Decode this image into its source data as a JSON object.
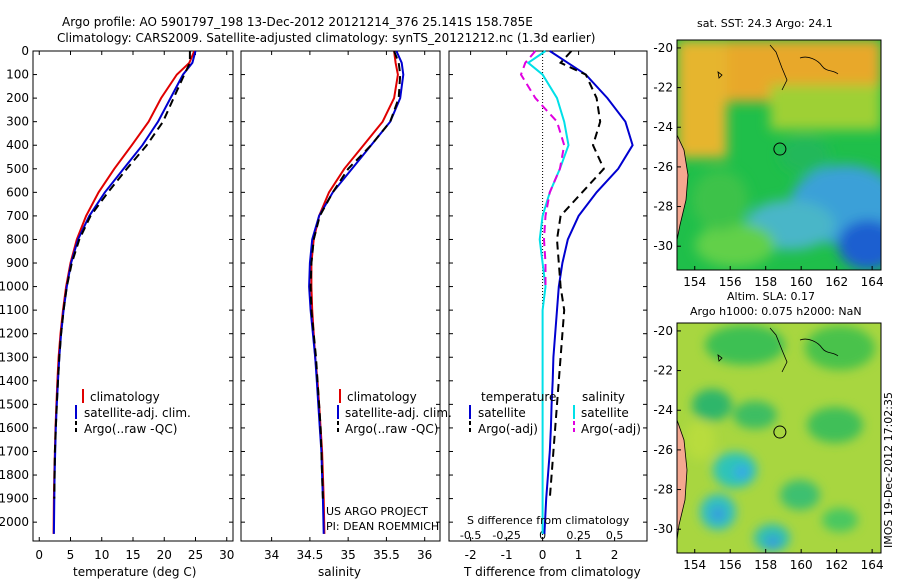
{
  "header": {
    "line1": "Argo profile: AO 5901797_198 13-Dec-2012 20121214_376 25.141S 158.785E",
    "line2": "Climatology: CARS2009. Satellite-adjusted climatology: synTS_20121212.nc (1.3d earlier)"
  },
  "colors": {
    "climatology": "#e00000",
    "satellite": "#0000d0",
    "argo": "#000000",
    "salinity_satellite": "#00e0e8",
    "salinity_argo": "#e000e0"
  },
  "map_top": {
    "title": "sat. SST: 24.3  Argo: 24.1",
    "xticks": [
      "154",
      "156",
      "158",
      "160",
      "162",
      "164"
    ],
    "yticks": [
      "-20",
      "-22",
      "-24",
      "-26",
      "-28",
      "-30"
    ],
    "xlim": [
      153,
      164.5
    ],
    "ylim": [
      -31.2,
      -19.6
    ],
    "marker": [
      158.8,
      -25.1
    ],
    "field": "sea-surface-temperature"
  },
  "map_bottom": {
    "title1": "Altim. SLA: 0.17",
    "title2": "Argo h1000: 0.075 h2000: NaN",
    "xticks": [
      "154",
      "156",
      "158",
      "160",
      "162",
      "164"
    ],
    "yticks": [
      "-20",
      "-22",
      "-24",
      "-26",
      "-28",
      "-30"
    ],
    "xlim": [
      153,
      164.5
    ],
    "ylim": [
      -31.2,
      -19.6
    ],
    "marker": [
      158.8,
      -25.1
    ],
    "field": "sea-level-anomaly"
  },
  "credit": "IMOS 19-Dec-2012 17:02:35",
  "chart_data": [
    {
      "type": "line",
      "xlabel": "temperature (deg C)",
      "xlim": [
        -1,
        31
      ],
      "ylim": [
        2080,
        0
      ],
      "xticks": [
        "0",
        "5",
        "10",
        "15",
        "20",
        "25",
        "30"
      ],
      "yticks": [
        "0",
        "100",
        "200",
        "300",
        "400",
        "500",
        "600",
        "700",
        "800",
        "900",
        "1000",
        "1100",
        "1200",
        "1300",
        "1400",
        "1500",
        "1600",
        "1700",
        "1800",
        "1900",
        "2000"
      ],
      "legend": [
        "climatology",
        "satellite-adj. clim.",
        "Argo(..raw -QC)"
      ],
      "series": [
        {
          "name": "climatology",
          "style": "solid",
          "color": "#e00000",
          "x": [
            24.8,
            24.0,
            22.0,
            19.5,
            17.5,
            14.8,
            12.0,
            9.5,
            7.5,
            6.0,
            5.0,
            4.3,
            3.8,
            3.4,
            3.1,
            2.9,
            2.75,
            2.6,
            2.5,
            2.4,
            2.35,
            2.3
          ],
          "y": [
            0,
            50,
            100,
            200,
            300,
            400,
            500,
            600,
            700,
            800,
            900,
            1000,
            1100,
            1200,
            1300,
            1400,
            1500,
            1600,
            1700,
            1800,
            1900,
            2050
          ]
        },
        {
          "name": "satellite-adj. clim.",
          "style": "solid",
          "color": "#0000d0",
          "x": [
            25.0,
            24.5,
            23.0,
            21.0,
            19.0,
            16.5,
            13.5,
            10.5,
            8.0,
            6.2,
            5.1,
            4.4,
            3.9,
            3.5,
            3.2,
            3.0,
            2.8,
            2.65,
            2.55,
            2.45,
            2.4,
            2.35
          ],
          "y": [
            0,
            50,
            100,
            200,
            300,
            400,
            500,
            600,
            700,
            800,
            900,
            1000,
            1100,
            1200,
            1300,
            1400,
            1500,
            1600,
            1700,
            1800,
            1900,
            2050
          ]
        },
        {
          "name": "Argo(..raw -QC)",
          "style": "dashed",
          "color": "#000000",
          "x": [
            24.1,
            24.1,
            23.2,
            21.5,
            19.8,
            17.2,
            14.0,
            11.0,
            8.2,
            6.4,
            5.2,
            4.4,
            3.9,
            3.5,
            3.2,
            3.0,
            2.8,
            2.65,
            2.5,
            2.45,
            2.4
          ],
          "y": [
            0,
            50,
            100,
            200,
            300,
            400,
            500,
            600,
            700,
            800,
            900,
            1000,
            1100,
            1200,
            1300,
            1400,
            1500,
            1600,
            1700,
            1800,
            1900
          ]
        }
      ]
    },
    {
      "type": "line",
      "xlabel": "salinity",
      "xlim": [
        33.6,
        36.2
      ],
      "ylim": [
        2080,
        0
      ],
      "xticks": [
        "34",
        "34.5",
        "35",
        "35.5",
        "36"
      ],
      "legend": [
        "climatology",
        "satellite-adj. clim.",
        "Argo(..raw -QC)"
      ],
      "annotation": [
        "US ARGO PROJECT",
        "PI: DEAN ROEMMICH"
      ],
      "series": [
        {
          "name": "climatology",
          "style": "solid",
          "color": "#e00000",
          "x": [
            35.6,
            35.62,
            35.65,
            35.6,
            35.45,
            35.2,
            34.95,
            34.75,
            34.62,
            34.55,
            34.52,
            34.52,
            34.53,
            34.55,
            34.57,
            34.6,
            34.62,
            34.64,
            34.66,
            34.67,
            34.68,
            34.69
          ],
          "y": [
            0,
            50,
            100,
            200,
            300,
            400,
            500,
            600,
            700,
            800,
            900,
            1000,
            1100,
            1200,
            1300,
            1400,
            1500,
            1600,
            1700,
            1800,
            1900,
            2050
          ]
        },
        {
          "name": "satellite-adj. clim.",
          "style": "solid",
          "color": "#0000d0",
          "x": [
            35.63,
            35.7,
            35.72,
            35.68,
            35.55,
            35.3,
            35.05,
            34.8,
            34.62,
            34.53,
            34.5,
            34.49,
            34.51,
            34.54,
            34.57,
            34.59,
            34.61,
            34.63,
            34.65,
            34.66,
            34.67,
            34.68
          ],
          "y": [
            0,
            50,
            100,
            200,
            300,
            400,
            500,
            600,
            700,
            800,
            900,
            1000,
            1100,
            1200,
            1300,
            1400,
            1500,
            1600,
            1700,
            1800,
            1900,
            2050
          ]
        },
        {
          "name": "Argo(..raw -QC)",
          "style": "dashed",
          "color": "#000000",
          "x": [
            35.6,
            35.66,
            35.68,
            35.66,
            35.55,
            35.3,
            35.0,
            34.8,
            34.63,
            34.55,
            34.52,
            34.51,
            34.52,
            34.55,
            34.58,
            34.6,
            34.62,
            34.64,
            34.65,
            34.66,
            34.67
          ],
          "y": [
            0,
            50,
            100,
            200,
            300,
            400,
            500,
            600,
            700,
            800,
            900,
            1000,
            1100,
            1200,
            1300,
            1400,
            1500,
            1600,
            1700,
            1800,
            1900
          ]
        }
      ]
    },
    {
      "type": "line",
      "xlabel": "T difference from climatology",
      "xlabel_top": "S difference from climatology",
      "xlim": [
        -2.6,
        2.9
      ],
      "ylim": [
        2080,
        0
      ],
      "xticks": [
        "-2",
        "-1",
        "0",
        "1",
        "2"
      ],
      "xticks_salinity": [
        "-0.5",
        "-0.25",
        "0",
        "0.25",
        "0.5"
      ],
      "legend": {
        "temperature": {
          "heading": "temperature",
          "items": [
            "satellite",
            "Argo(-adj)"
          ]
        },
        "salinity": {
          "heading": "salinity",
          "items": [
            "satellite",
            "Argo(-adj)"
          ]
        }
      },
      "series": [
        {
          "name": "satellite",
          "variable": "temperature",
          "style": "solid",
          "color": "#0000d0",
          "x": [
            0.2,
            0.7,
            1.2,
            1.8,
            2.3,
            2.5,
            2.1,
            1.5,
            1.0,
            0.7,
            0.55,
            0.45,
            0.4,
            0.35,
            0.3,
            0.28,
            0.25,
            0.23,
            0.2,
            0.15,
            0.1,
            0.05
          ],
          "y": [
            0,
            50,
            100,
            200,
            300,
            400,
            500,
            600,
            700,
            800,
            900,
            1000,
            1100,
            1200,
            1300,
            1400,
            1500,
            1600,
            1700,
            1800,
            1900,
            2050
          ]
        },
        {
          "name": "Argo(-adj)",
          "variable": "temperature",
          "style": "dashed",
          "color": "#000000",
          "x": [
            0.8,
            0.5,
            1.2,
            1.5,
            1.6,
            1.4,
            1.7,
            1.1,
            0.5,
            0.4,
            0.45,
            0.5,
            0.6,
            0.55,
            0.5,
            0.45,
            0.4,
            0.35,
            0.3,
            0.25,
            0.2
          ],
          "y": [
            0,
            50,
            100,
            200,
            300,
            400,
            500,
            600,
            700,
            800,
            900,
            1000,
            1100,
            1200,
            1300,
            1400,
            1500,
            1600,
            1700,
            1800,
            1900
          ]
        },
        {
          "name": "satellite",
          "variable": "salinity",
          "style": "solid",
          "color": "#00e0e8",
          "x": [
            0.02,
            -0.1,
            0.0,
            0.1,
            0.15,
            0.18,
            0.12,
            0.05,
            0.0,
            -0.02,
            0.0,
            0.02,
            0.0,
            0.0,
            0.0,
            0.0,
            0.0,
            0.0,
            0.0,
            0.0,
            0.0,
            0.0
          ],
          "y": [
            0,
            50,
            100,
            200,
            300,
            400,
            500,
            600,
            700,
            800,
            900,
            1000,
            1100,
            1200,
            1300,
            1400,
            1500,
            1600,
            1700,
            1800,
            1900,
            2050
          ]
        },
        {
          "name": "Argo(-adj)",
          "variable": "salinity",
          "style": "dashed",
          "color": "#e000e0",
          "x": [
            -0.05,
            -0.12,
            -0.15,
            -0.05,
            0.1,
            0.15,
            0.12,
            0.05,
            0.02,
            0.01,
            0.02,
            0.02
          ],
          "y": [
            0,
            50,
            100,
            200,
            300,
            400,
            500,
            600,
            700,
            800,
            900,
            1000
          ]
        }
      ]
    }
  ]
}
